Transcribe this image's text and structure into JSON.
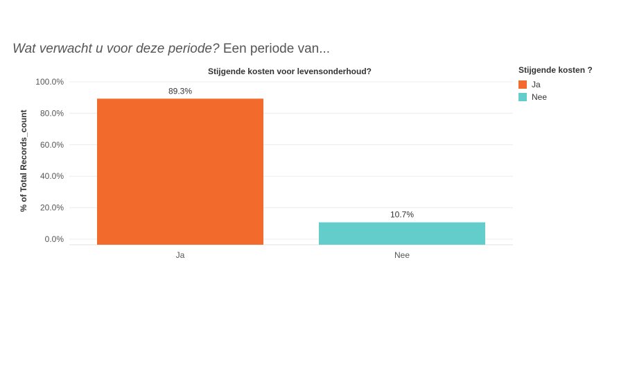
{
  "page": {
    "question": "Wat verwacht u voor deze periode?",
    "question_suffix": " Een periode van..."
  },
  "legend": {
    "title": "Stijgende kosten ?",
    "items": [
      {
        "label": "Ja",
        "color": "#F26B2C"
      },
      {
        "label": "Nee",
        "color": "#62CDCB"
      }
    ]
  },
  "chart_data": {
    "type": "bar",
    "title": "Stijgende kosten voor levensonderhoud?",
    "xlabel": "",
    "ylabel": "% of Total Records_count",
    "categories": [
      "Ja",
      "Nee"
    ],
    "values": [
      89.3,
      10.7
    ],
    "value_labels": [
      "89.3%",
      "10.7%"
    ],
    "colors": [
      "#F26B2C",
      "#62CDCB"
    ],
    "ylim": [
      0,
      100
    ],
    "yticks": [
      0,
      20,
      40,
      60,
      80,
      100
    ],
    "ytick_labels": [
      "0.0%",
      "20.0%",
      "40.0%",
      "60.0%",
      "80.0%",
      "100.0%"
    ],
    "grid": true,
    "legend_position": "right"
  }
}
